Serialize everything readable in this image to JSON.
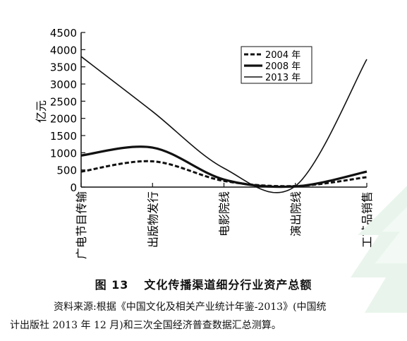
{
  "chart_data": {
    "type": "line",
    "ylabel": "亿元",
    "ylim": [
      0,
      4500
    ],
    "yticks": [
      0,
      500,
      1000,
      1500,
      2000,
      2500,
      3000,
      3500,
      4000,
      4500
    ],
    "categories": [
      "广电节目传输",
      "出版物发行",
      "电影院线",
      "演出院线",
      "工艺品销售"
    ],
    "series": [
      {
        "name": "2004 年",
        "style": "dashed",
        "values": [
          450,
          750,
          180,
          30,
          290
        ]
      },
      {
        "name": "2008 年",
        "style": "thick",
        "values": [
          920,
          1150,
          220,
          20,
          450
        ]
      },
      {
        "name": "2013 年",
        "style": "thin",
        "values": [
          3800,
          2200,
          550,
          30,
          3720
        ]
      }
    ],
    "legend_position": "top-right",
    "grid": false
  },
  "caption": {
    "number": "图 13",
    "title": "文化传播渠道细分行业资产总额"
  },
  "source": {
    "line1": "资料来源:根据《中国文化及相关产业统计年鉴-2013》(中国统",
    "line2": "计出版社 2013 年 12 月)和三次全国经济普查数据汇总测算。"
  },
  "colors": {
    "line": "#111111",
    "watermark": "#e6f3ea"
  }
}
